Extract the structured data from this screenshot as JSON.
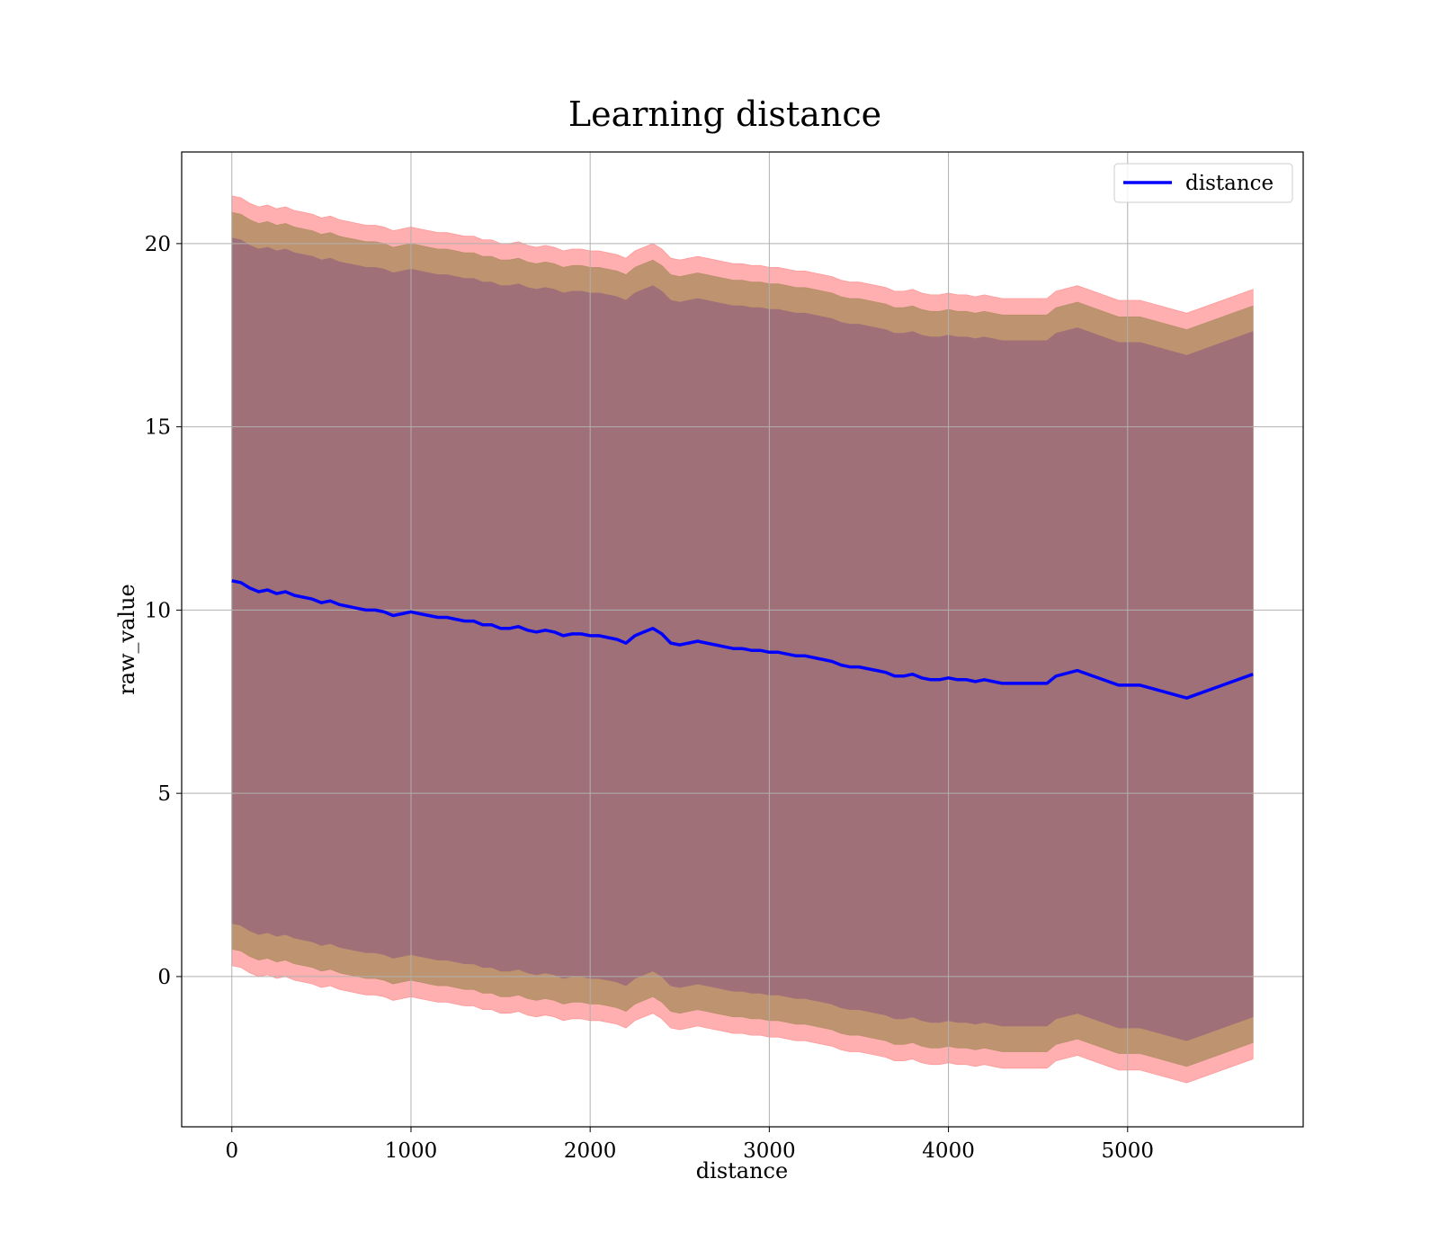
{
  "chart_data": {
    "type": "line",
    "title": "Learning distance",
    "xlabel": "distance",
    "ylabel": "raw_value",
    "xlim": [
      -280,
      5980
    ],
    "ylim": [
      -4.1,
      22.5
    ],
    "x_ticks": [
      0,
      1000,
      2000,
      3000,
      4000,
      5000
    ],
    "y_ticks": [
      0,
      5,
      10,
      15,
      20
    ],
    "grid": true,
    "legend": {
      "position": "top-right",
      "entries": [
        "distance"
      ]
    },
    "colors": {
      "line": "#0000ff",
      "outer_band": "#ff9999",
      "middle_band": "#b8906a",
      "inner_band": "#a07078"
    },
    "series": [
      {
        "name": "distance",
        "style": "line",
        "x": [
          0,
          50,
          100,
          150,
          200,
          250,
          300,
          350,
          400,
          450,
          500,
          550,
          600,
          650,
          700,
          750,
          800,
          850,
          900,
          950,
          1000,
          1050,
          1100,
          1150,
          1200,
          1250,
          1300,
          1350,
          1400,
          1450,
          1500,
          1550,
          1600,
          1650,
          1700,
          1750,
          1800,
          1850,
          1900,
          1950,
          2000,
          2050,
          2100,
          2150,
          2200,
          2250,
          2300,
          2350,
          2400,
          2450,
          2500,
          2550,
          2600,
          2650,
          2700,
          2750,
          2800,
          2850,
          2900,
          2950,
          3000,
          3050,
          3100,
          3150,
          3200,
          3250,
          3300,
          3350,
          3400,
          3450,
          3500,
          3550,
          3600,
          3650,
          3700,
          3750,
          3800,
          3850,
          3900,
          3950,
          4000,
          4050,
          4100,
          4150,
          4200,
          4250,
          4300,
          4350,
          4400,
          4450,
          4500,
          4550,
          4600,
          4720,
          4950,
          5070,
          5330,
          5700
        ],
        "y": [
          10.8,
          10.75,
          10.6,
          10.5,
          10.55,
          10.45,
          10.5,
          10.4,
          10.35,
          10.3,
          10.2,
          10.25,
          10.15,
          10.1,
          10.05,
          10.0,
          10.0,
          9.95,
          9.85,
          9.9,
          9.95,
          9.9,
          9.85,
          9.8,
          9.8,
          9.75,
          9.7,
          9.7,
          9.6,
          9.6,
          9.5,
          9.5,
          9.55,
          9.45,
          9.4,
          9.45,
          9.4,
          9.3,
          9.35,
          9.35,
          9.3,
          9.3,
          9.25,
          9.2,
          9.1,
          9.3,
          9.4,
          9.5,
          9.35,
          9.1,
          9.05,
          9.1,
          9.15,
          9.1,
          9.05,
          9.0,
          8.95,
          8.95,
          8.9,
          8.9,
          8.85,
          8.85,
          8.8,
          8.75,
          8.75,
          8.7,
          8.65,
          8.6,
          8.5,
          8.45,
          8.45,
          8.4,
          8.35,
          8.3,
          8.2,
          8.2,
          8.25,
          8.15,
          8.1,
          8.1,
          8.15,
          8.1,
          8.1,
          8.05,
          8.1,
          8.05,
          8.0,
          8.0,
          8.0,
          8.0,
          8.0,
          8.0,
          8.2,
          8.35,
          7.95,
          7.95,
          7.6,
          8.25
        ]
      },
      {
        "name": "",
        "style": "band",
        "x": [
          0,
          50,
          100,
          150,
          200,
          250,
          300,
          350,
          400,
          450,
          500,
          550,
          600,
          650,
          700,
          750,
          800,
          850,
          900,
          950,
          1000,
          1050,
          1100,
          1150,
          1200,
          1250,
          1300,
          1350,
          1400,
          1450,
          1500,
          1550,
          1600,
          1650,
          1700,
          1750,
          1800,
          1850,
          1900,
          1950,
          2000,
          2050,
          2100,
          2150,
          2200,
          2250,
          2300,
          2350,
          2400,
          2450,
          2500,
          2550,
          2600,
          2650,
          2700,
          2750,
          2800,
          2850,
          2900,
          2950,
          3000,
          3050,
          3100,
          3150,
          3200,
          3250,
          3300,
          3350,
          3400,
          3450,
          3500,
          3550,
          3600,
          3650,
          3700,
          3750,
          3800,
          3850,
          3900,
          3950,
          4000,
          4050,
          4100,
          4150,
          4200,
          4250,
          4300,
          4350,
          4400,
          4450,
          4500,
          4550,
          4600,
          4720,
          4950,
          5070,
          5330,
          5700
        ],
        "upper": [
          21.3,
          21.25,
          21.1,
          21.0,
          21.05,
          20.95,
          21.0,
          20.9,
          20.85,
          20.8,
          20.7,
          20.75,
          20.65,
          20.6,
          20.55,
          20.5,
          20.5,
          20.45,
          20.35,
          20.4,
          20.45,
          20.4,
          20.35,
          20.3,
          20.3,
          20.25,
          20.2,
          20.2,
          20.1,
          20.1,
          20.0,
          20.0,
          20.05,
          19.95,
          19.9,
          19.95,
          19.9,
          19.8,
          19.85,
          19.85,
          19.8,
          19.8,
          19.75,
          19.7,
          19.6,
          19.8,
          19.9,
          20.0,
          19.85,
          19.6,
          19.55,
          19.6,
          19.65,
          19.6,
          19.55,
          19.5,
          19.45,
          19.45,
          19.4,
          19.4,
          19.35,
          19.35,
          19.3,
          19.25,
          19.25,
          19.2,
          19.15,
          19.1,
          19.0,
          18.95,
          18.95,
          18.9,
          18.85,
          18.8,
          18.7,
          18.7,
          18.75,
          18.65,
          18.6,
          18.6,
          18.65,
          18.6,
          18.6,
          18.55,
          18.6,
          18.55,
          18.5,
          18.5,
          18.5,
          18.5,
          18.5,
          18.5,
          18.7,
          18.85,
          18.45,
          18.45,
          18.1,
          18.75
        ],
        "lower": [
          0.3,
          0.25,
          0.1,
          0.0,
          0.05,
          -0.05,
          0.0,
          -0.1,
          -0.15,
          -0.2,
          -0.3,
          -0.25,
          -0.35,
          -0.4,
          -0.45,
          -0.5,
          -0.5,
          -0.55,
          -0.65,
          -0.6,
          -0.55,
          -0.6,
          -0.65,
          -0.7,
          -0.7,
          -0.75,
          -0.8,
          -0.8,
          -0.9,
          -0.9,
          -1.0,
          -1.0,
          -0.95,
          -1.05,
          -1.1,
          -1.05,
          -1.1,
          -1.2,
          -1.15,
          -1.15,
          -1.2,
          -1.2,
          -1.25,
          -1.3,
          -1.4,
          -1.2,
          -1.1,
          -1.0,
          -1.15,
          -1.4,
          -1.45,
          -1.4,
          -1.35,
          -1.4,
          -1.45,
          -1.5,
          -1.55,
          -1.55,
          -1.6,
          -1.6,
          -1.65,
          -1.65,
          -1.7,
          -1.75,
          -1.75,
          -1.8,
          -1.85,
          -1.9,
          -2.0,
          -2.05,
          -2.05,
          -2.1,
          -2.15,
          -2.2,
          -2.3,
          -2.3,
          -2.25,
          -2.35,
          -2.4,
          -2.4,
          -2.35,
          -2.4,
          -2.4,
          -2.45,
          -2.4,
          -2.45,
          -2.5,
          -2.5,
          -2.5,
          -2.5,
          -2.5,
          -2.5,
          -2.3,
          -2.15,
          -2.55,
          -2.55,
          -2.9,
          -2.25
        ]
      },
      {
        "name": "",
        "style": "band",
        "x": [
          0,
          50,
          100,
          150,
          200,
          250,
          300,
          350,
          400,
          450,
          500,
          550,
          600,
          650,
          700,
          750,
          800,
          850,
          900,
          950,
          1000,
          1050,
          1100,
          1150,
          1200,
          1250,
          1300,
          1350,
          1400,
          1450,
          1500,
          1550,
          1600,
          1650,
          1700,
          1750,
          1800,
          1850,
          1900,
          1950,
          2000,
          2050,
          2100,
          2150,
          2200,
          2250,
          2300,
          2350,
          2400,
          2450,
          2500,
          2550,
          2600,
          2650,
          2700,
          2750,
          2800,
          2850,
          2900,
          2950,
          3000,
          3050,
          3100,
          3150,
          3200,
          3250,
          3300,
          3350,
          3400,
          3450,
          3500,
          3550,
          3600,
          3650,
          3700,
          3750,
          3800,
          3850,
          3900,
          3950,
          4000,
          4050,
          4100,
          4150,
          4200,
          4250,
          4300,
          4350,
          4400,
          4450,
          4500,
          4550,
          4600,
          4720,
          4950,
          5070,
          5330,
          5700
        ],
        "upper": [
          20.85,
          20.8,
          20.65,
          20.55,
          20.6,
          20.5,
          20.55,
          20.45,
          20.4,
          20.35,
          20.25,
          20.3,
          20.2,
          20.15,
          20.1,
          20.05,
          20.05,
          20.0,
          19.9,
          19.95,
          20.0,
          19.95,
          19.9,
          19.85,
          19.85,
          19.8,
          19.75,
          19.75,
          19.65,
          19.65,
          19.55,
          19.55,
          19.6,
          19.5,
          19.45,
          19.5,
          19.45,
          19.35,
          19.4,
          19.4,
          19.35,
          19.35,
          19.3,
          19.25,
          19.15,
          19.35,
          19.45,
          19.55,
          19.4,
          19.15,
          19.1,
          19.15,
          19.2,
          19.15,
          19.1,
          19.05,
          19.0,
          19.0,
          18.95,
          18.95,
          18.9,
          18.9,
          18.85,
          18.8,
          18.8,
          18.75,
          18.7,
          18.65,
          18.55,
          18.5,
          18.5,
          18.45,
          18.4,
          18.35,
          18.25,
          18.25,
          18.3,
          18.2,
          18.15,
          18.15,
          18.2,
          18.15,
          18.15,
          18.1,
          18.15,
          18.1,
          18.05,
          18.05,
          18.05,
          18.05,
          18.05,
          18.05,
          18.25,
          18.4,
          18.0,
          18.0,
          17.65,
          18.3
        ],
        "lower": [
          0.75,
          0.7,
          0.55,
          0.45,
          0.5,
          0.4,
          0.45,
          0.35,
          0.3,
          0.25,
          0.15,
          0.2,
          0.1,
          0.05,
          0.0,
          -0.05,
          -0.05,
          -0.1,
          -0.2,
          -0.15,
          -0.1,
          -0.15,
          -0.2,
          -0.25,
          -0.25,
          -0.3,
          -0.35,
          -0.35,
          -0.45,
          -0.45,
          -0.55,
          -0.55,
          -0.5,
          -0.6,
          -0.65,
          -0.6,
          -0.65,
          -0.75,
          -0.7,
          -0.7,
          -0.75,
          -0.75,
          -0.8,
          -0.85,
          -0.95,
          -0.75,
          -0.65,
          -0.55,
          -0.7,
          -0.95,
          -1.0,
          -0.95,
          -0.9,
          -0.95,
          -1.0,
          -1.05,
          -1.1,
          -1.1,
          -1.15,
          -1.15,
          -1.2,
          -1.2,
          -1.25,
          -1.3,
          -1.3,
          -1.35,
          -1.4,
          -1.45,
          -1.55,
          -1.6,
          -1.6,
          -1.65,
          -1.7,
          -1.75,
          -1.85,
          -1.85,
          -1.8,
          -1.9,
          -1.95,
          -1.95,
          -1.9,
          -1.95,
          -1.95,
          -2.0,
          -1.95,
          -2.0,
          -2.05,
          -2.05,
          -2.05,
          -2.05,
          -2.05,
          -2.05,
          -1.85,
          -1.7,
          -2.1,
          -2.1,
          -2.45,
          -1.8
        ]
      },
      {
        "name": "",
        "style": "band",
        "x": [
          0,
          50,
          100,
          150,
          200,
          250,
          300,
          350,
          400,
          450,
          500,
          550,
          600,
          650,
          700,
          750,
          800,
          850,
          900,
          950,
          1000,
          1050,
          1100,
          1150,
          1200,
          1250,
          1300,
          1350,
          1400,
          1450,
          1500,
          1550,
          1600,
          1650,
          1700,
          1750,
          1800,
          1850,
          1900,
          1950,
          2000,
          2050,
          2100,
          2150,
          2200,
          2250,
          2300,
          2350,
          2400,
          2450,
          2500,
          2550,
          2600,
          2650,
          2700,
          2750,
          2800,
          2850,
          2900,
          2950,
          3000,
          3050,
          3100,
          3150,
          3200,
          3250,
          3300,
          3350,
          3400,
          3450,
          3500,
          3550,
          3600,
          3650,
          3700,
          3750,
          3800,
          3850,
          3900,
          3950,
          4000,
          4050,
          4100,
          4150,
          4200,
          4250,
          4300,
          4350,
          4400,
          4450,
          4500,
          4550,
          4600,
          4720,
          4950,
          5070,
          5330,
          5700
        ],
        "upper": [
          20.15,
          20.1,
          19.95,
          19.85,
          19.9,
          19.8,
          19.85,
          19.75,
          19.7,
          19.65,
          19.55,
          19.6,
          19.5,
          19.45,
          19.4,
          19.35,
          19.35,
          19.3,
          19.2,
          19.25,
          19.3,
          19.25,
          19.2,
          19.15,
          19.15,
          19.1,
          19.05,
          19.05,
          18.95,
          18.95,
          18.85,
          18.85,
          18.9,
          18.8,
          18.75,
          18.8,
          18.75,
          18.65,
          18.7,
          18.7,
          18.65,
          18.65,
          18.6,
          18.55,
          18.45,
          18.65,
          18.75,
          18.85,
          18.7,
          18.45,
          18.4,
          18.45,
          18.5,
          18.45,
          18.4,
          18.35,
          18.3,
          18.3,
          18.25,
          18.25,
          18.2,
          18.2,
          18.15,
          18.1,
          18.1,
          18.05,
          18.0,
          17.95,
          17.85,
          17.8,
          17.8,
          17.75,
          17.7,
          17.65,
          17.55,
          17.55,
          17.6,
          17.5,
          17.45,
          17.45,
          17.5,
          17.45,
          17.45,
          17.4,
          17.45,
          17.4,
          17.35,
          17.35,
          17.35,
          17.35,
          17.35,
          17.35,
          17.55,
          17.7,
          17.3,
          17.3,
          16.95,
          17.6
        ],
        "lower": [
          1.45,
          1.4,
          1.25,
          1.15,
          1.2,
          1.1,
          1.15,
          1.05,
          1.0,
          0.95,
          0.85,
          0.9,
          0.8,
          0.75,
          0.7,
          0.65,
          0.65,
          0.6,
          0.5,
          0.55,
          0.6,
          0.55,
          0.5,
          0.45,
          0.45,
          0.4,
          0.35,
          0.35,
          0.25,
          0.25,
          0.15,
          0.15,
          0.2,
          0.1,
          0.05,
          0.1,
          0.05,
          -0.05,
          0.0,
          0.0,
          -0.05,
          -0.05,
          -0.1,
          -0.15,
          -0.25,
          -0.05,
          0.05,
          0.15,
          0.0,
          -0.25,
          -0.3,
          -0.25,
          -0.2,
          -0.25,
          -0.3,
          -0.35,
          -0.4,
          -0.4,
          -0.45,
          -0.45,
          -0.5,
          -0.5,
          -0.55,
          -0.6,
          -0.6,
          -0.65,
          -0.7,
          -0.75,
          -0.85,
          -0.9,
          -0.9,
          -0.95,
          -1.0,
          -1.05,
          -1.15,
          -1.15,
          -1.1,
          -1.2,
          -1.25,
          -1.25,
          -1.2,
          -1.25,
          -1.25,
          -1.3,
          -1.25,
          -1.3,
          -1.35,
          -1.35,
          -1.35,
          -1.35,
          -1.35,
          -1.35,
          -1.15,
          -1.0,
          -1.4,
          -1.4,
          -1.75,
          -1.1
        ]
      }
    ]
  }
}
